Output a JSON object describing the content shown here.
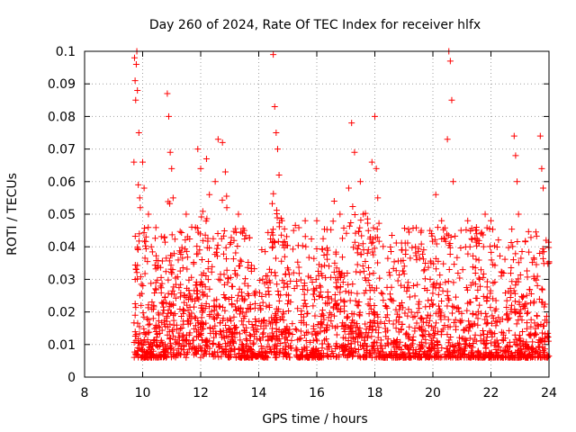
{
  "chart_data": {
    "type": "scatter",
    "title": "Day 260 of 2024, Rate Of TEC Index for receiver hlfx",
    "xlabel": "GPS time / hours",
    "ylabel": "ROTI / TECUs",
    "xlim": [
      8,
      24
    ],
    "ylim": [
      0,
      0.1
    ],
    "x_ticks": [
      8,
      10,
      12,
      14,
      16,
      18,
      20,
      22,
      24
    ],
    "y_ticks": [
      0,
      0.01,
      0.02,
      0.03,
      0.04,
      0.05,
      0.06,
      0.07,
      0.08,
      0.09,
      0.1
    ],
    "x_tick_labels": [
      "8",
      "10",
      "12",
      "14",
      "16",
      "18",
      "20",
      "22",
      "24"
    ],
    "y_tick_labels": [
      "0",
      "0.01",
      "0.02",
      "0.03",
      "0.04",
      "0.05",
      "0.06",
      "0.07",
      "0.08",
      "0.09",
      "0.1"
    ],
    "grid": true,
    "marker": "+",
    "color": "#ff0000",
    "series": [
      {
        "name": "ROTI",
        "points": [
          [
            9.7,
            0.066
          ],
          [
            9.72,
            0.098
          ],
          [
            9.74,
            0.091
          ],
          [
            9.76,
            0.085
          ],
          [
            9.78,
            0.096
          ],
          [
            9.8,
            0.1
          ],
          [
            9.82,
            0.088
          ],
          [
            9.85,
            0.059
          ],
          [
            9.87,
            0.075
          ],
          [
            9.9,
            0.055
          ],
          [
            9.92,
            0.052
          ],
          [
            10.0,
            0.066
          ],
          [
            10.05,
            0.058
          ],
          [
            10.2,
            0.05
          ],
          [
            10.3,
            0.04
          ],
          [
            10.85,
            0.087
          ],
          [
            10.9,
            0.08
          ],
          [
            10.95,
            0.069
          ],
          [
            11.0,
            0.064
          ],
          [
            11.05,
            0.055
          ],
          [
            11.5,
            0.05
          ],
          [
            11.9,
            0.07
          ],
          [
            12.0,
            0.064
          ],
          [
            12.2,
            0.067
          ],
          [
            12.3,
            0.056
          ],
          [
            12.5,
            0.06
          ],
          [
            12.6,
            0.073
          ],
          [
            12.75,
            0.072
          ],
          [
            12.85,
            0.063
          ],
          [
            12.9,
            0.052
          ],
          [
            13.3,
            0.05
          ],
          [
            13.5,
            0.045
          ],
          [
            14.5,
            0.099
          ],
          [
            14.55,
            0.083
          ],
          [
            14.6,
            0.075
          ],
          [
            14.65,
            0.07
          ],
          [
            14.7,
            0.062
          ],
          [
            14.8,
            0.048
          ],
          [
            15.2,
            0.045
          ],
          [
            15.6,
            0.048
          ],
          [
            16.0,
            0.048
          ],
          [
            16.6,
            0.054
          ],
          [
            16.8,
            0.05
          ],
          [
            17.1,
            0.058
          ],
          [
            17.2,
            0.078
          ],
          [
            17.3,
            0.069
          ],
          [
            17.5,
            0.06
          ],
          [
            17.6,
            0.05
          ],
          [
            17.9,
            0.066
          ],
          [
            18.0,
            0.08
          ],
          [
            18.05,
            0.064
          ],
          [
            18.1,
            0.055
          ],
          [
            19.4,
            0.04
          ],
          [
            19.6,
            0.045
          ],
          [
            20.1,
            0.056
          ],
          [
            20.3,
            0.048
          ],
          [
            20.5,
            0.073
          ],
          [
            20.55,
            0.1
          ],
          [
            20.6,
            0.097
          ],
          [
            20.65,
            0.085
          ],
          [
            20.7,
            0.06
          ],
          [
            21.2,
            0.048
          ],
          [
            21.5,
            0.046
          ],
          [
            21.8,
            0.05
          ],
          [
            22.0,
            0.048
          ],
          [
            22.8,
            0.074
          ],
          [
            22.85,
            0.068
          ],
          [
            22.9,
            0.06
          ],
          [
            22.95,
            0.05
          ],
          [
            23.7,
            0.074
          ],
          [
            23.75,
            0.064
          ],
          [
            23.8,
            0.058
          ],
          [
            23.9,
            0.042
          ],
          [
            24.0,
            0.035
          ]
        ]
      }
    ]
  }
}
